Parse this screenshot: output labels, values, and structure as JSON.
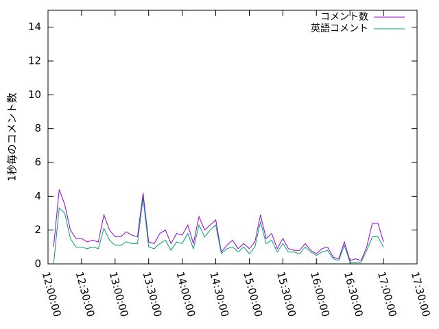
{
  "chart_data": {
    "type": "line",
    "ylabel": "1秒毎のコメント数",
    "x": [
      "12:05:00",
      "12:10:00",
      "12:15:00",
      "12:20:00",
      "12:25:00",
      "12:30:00",
      "12:35:00",
      "12:40:00",
      "12:45:00",
      "12:50:00",
      "12:55:00",
      "13:00:00",
      "13:05:00",
      "13:10:00",
      "13:15:00",
      "13:20:00",
      "13:25:00",
      "13:30:00",
      "13:35:00",
      "13:40:00",
      "13:45:00",
      "13:50:00",
      "13:55:00",
      "14:00:00",
      "14:05:00",
      "14:10:00",
      "14:15:00",
      "14:20:00",
      "14:25:00",
      "14:30:00",
      "14:35:00",
      "14:40:00",
      "14:45:00",
      "14:50:00",
      "14:55:00",
      "15:00:00",
      "15:05:00",
      "15:10:00",
      "15:15:00",
      "15:20:00",
      "15:25:00",
      "15:30:00",
      "15:35:00",
      "15:40:00",
      "15:45:00",
      "15:50:00",
      "15:55:00",
      "16:00:00",
      "16:05:00",
      "16:10:00",
      "16:15:00",
      "16:20:00",
      "16:25:00",
      "16:30:00",
      "16:35:00",
      "16:40:00",
      "16:45:00",
      "16:50:00",
      "16:55:00",
      "17:00:00"
    ],
    "series": [
      {
        "name": "コメント数",
        "color": "#9400d3",
        "values": [
          1.0,
          4.4,
          3.5,
          2.0,
          1.5,
          1.5,
          1.3,
          1.4,
          1.3,
          2.9,
          2.0,
          1.6,
          1.6,
          1.9,
          1.7,
          1.6,
          4.2,
          1.3,
          1.2,
          1.8,
          2.0,
          1.2,
          1.8,
          1.7,
          2.3,
          1.2,
          2.8,
          2.0,
          2.3,
          2.6,
          0.7,
          1.1,
          1.4,
          0.9,
          1.2,
          0.9,
          1.3,
          2.9,
          1.5,
          1.8,
          0.9,
          1.5,
          0.9,
          0.8,
          0.8,
          1.2,
          0.8,
          0.6,
          0.9,
          1.0,
          0.4,
          0.3,
          1.3,
          0.2,
          0.3,
          0.2,
          1.0,
          2.4,
          2.4,
          1.3
        ]
      },
      {
        "name": "英語コメント",
        "color": "#009e73",
        "values": [
          0,
          3.3,
          3.0,
          1.5,
          1.0,
          1.0,
          0.9,
          1.0,
          0.9,
          2.1,
          1.4,
          1.1,
          1.1,
          1.3,
          1.2,
          1.2,
          3.9,
          1.0,
          0.9,
          1.2,
          1.4,
          0.8,
          1.3,
          1.2,
          1.8,
          0.9,
          2.3,
          1.6,
          2.0,
          2.3,
          0.6,
          0.9,
          1.0,
          0.7,
          1.0,
          0.6,
          1.0,
          2.5,
          1.2,
          1.4,
          0.7,
          1.2,
          0.7,
          0.7,
          0.6,
          1.0,
          0.7,
          0.5,
          0.7,
          0.8,
          0.3,
          0.2,
          1.1,
          0.1,
          0.1,
          0.1,
          0.8,
          1.6,
          1.6,
          1.0
        ]
      }
    ],
    "xlim": [
      "12:00:00",
      "17:30:00"
    ],
    "xticks": [
      "12:00:00",
      "12:30:00",
      "13:00:00",
      "13:30:00",
      "14:00:00",
      "14:30:00",
      "15:00:00",
      "15:30:00",
      "16:00:00",
      "16:30:00",
      "17:00:00",
      "17:30:00"
    ],
    "ylim": [
      0,
      15
    ],
    "yticks": [
      0,
      2,
      4,
      6,
      8,
      10,
      12,
      14
    ],
    "grid": false,
    "legend": "top right"
  }
}
